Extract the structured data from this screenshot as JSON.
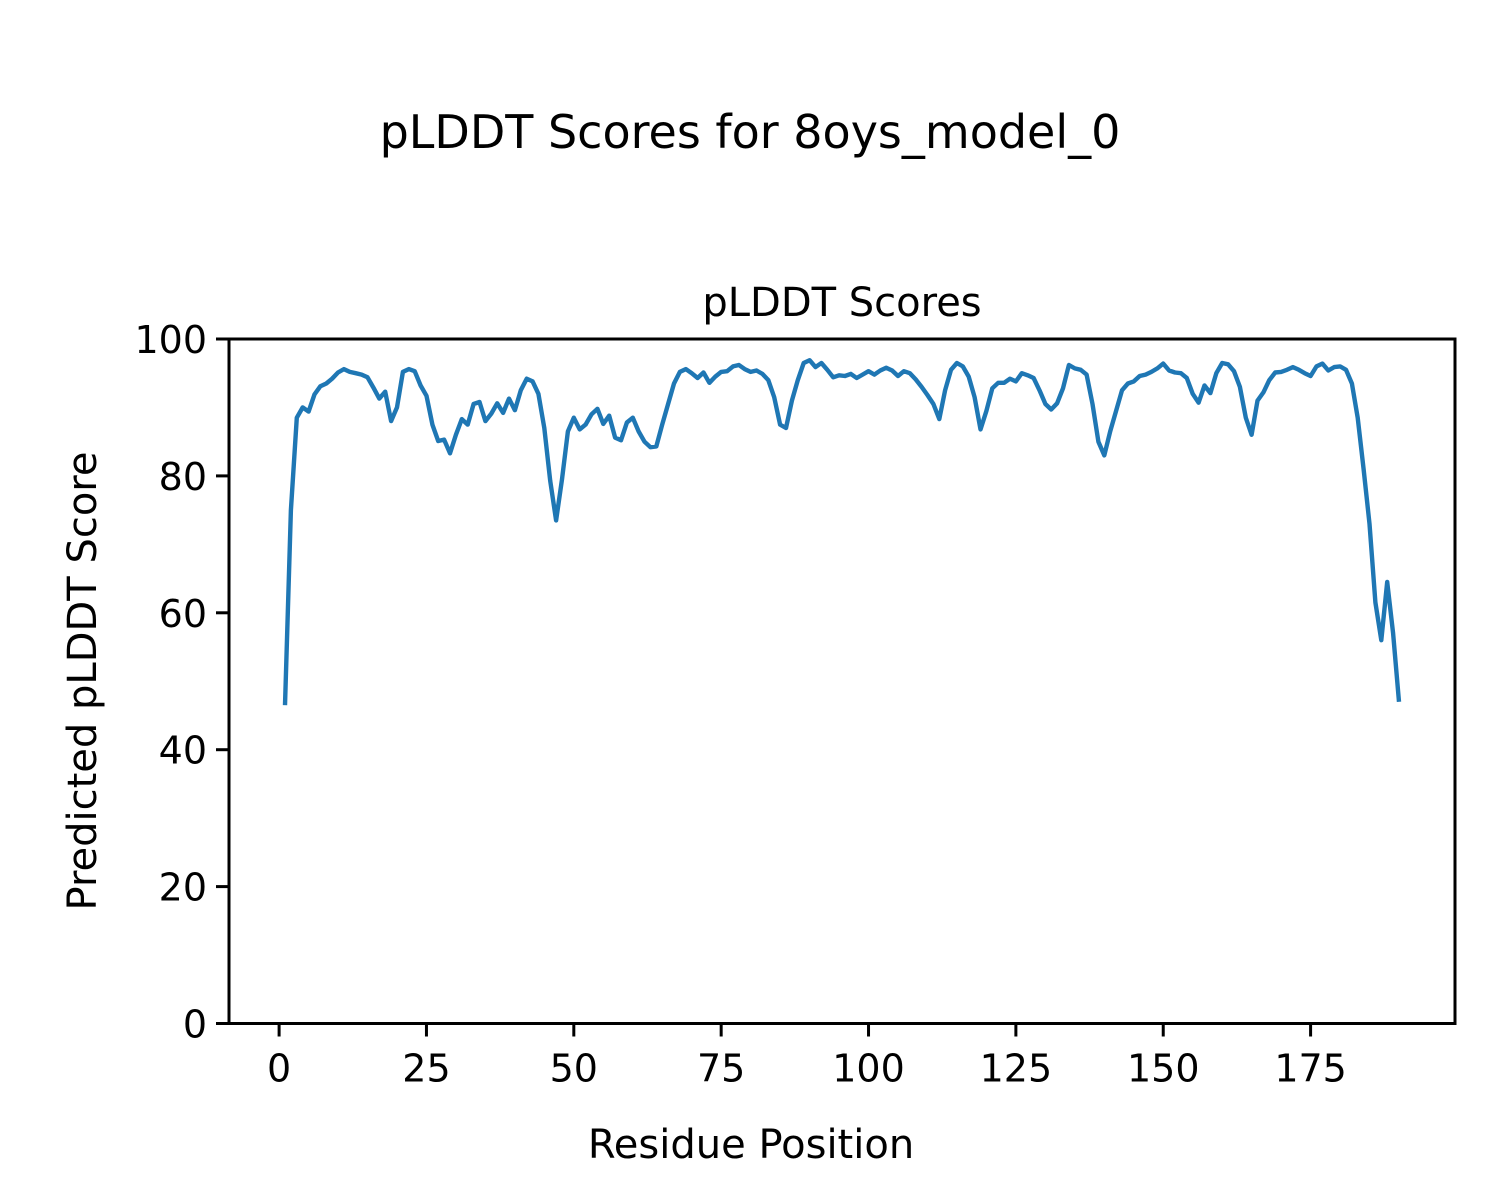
{
  "figure": {
    "suptitle": "pLDDT Scores for 8oys_model_0",
    "background_color": "#ffffff",
    "text_color": "#000000"
  },
  "chart_data": {
    "type": "line",
    "title": "pLDDT Scores",
    "xlabel": "Residue Position",
    "ylabel": "Predicted pLDDT Score",
    "legend": "none",
    "grid": false,
    "line_color": "#1f77b4",
    "line_width": 4.4,
    "spine_color": "#000000",
    "xlim": [
      -8.5,
      199.5
    ],
    "ylim": [
      0,
      100
    ],
    "x_ticks": [
      0,
      25,
      50,
      75,
      100,
      125,
      150,
      175
    ],
    "y_ticks": [
      0,
      20,
      40,
      60,
      80,
      100
    ],
    "series_name": "pLDDT",
    "x_start": 1,
    "x_step": 1,
    "values": [
      46.5,
      75.0,
      88.5,
      90.0,
      89.4,
      91.9,
      93.1,
      93.5,
      94.2,
      95.1,
      95.6,
      95.2,
      95.0,
      94.8,
      94.4,
      92.9,
      91.3,
      92.3,
      88.0,
      90.0,
      95.2,
      95.6,
      95.3,
      93.2,
      91.7,
      87.5,
      85.1,
      85.3,
      83.3,
      86.0,
      88.3,
      87.5,
      90.5,
      90.8,
      88.0,
      89.1,
      90.6,
      89.2,
      91.3,
      89.6,
      92.5,
      94.2,
      93.8,
      92.0,
      87.0,
      79.3,
      73.5,
      79.5,
      86.5,
      88.5,
      86.8,
      87.5,
      89.0,
      89.8,
      87.6,
      88.8,
      85.6,
      85.2,
      87.8,
      88.5,
      86.5,
      85.0,
      84.2,
      84.3,
      87.5,
      90.5,
      93.5,
      95.2,
      95.6,
      95.0,
      94.3,
      95.1,
      93.6,
      94.5,
      95.2,
      95.3,
      96.0,
      96.2,
      95.6,
      95.2,
      95.4,
      94.9,
      94.0,
      91.5,
      87.5,
      87.0,
      91.0,
      94.0,
      96.5,
      96.9,
      95.9,
      96.5,
      95.5,
      94.4,
      94.7,
      94.6,
      94.9,
      94.3,
      94.8,
      95.3,
      94.8,
      95.4,
      95.8,
      95.4,
      94.6,
      95.3,
      95.0,
      94.1,
      93.0,
      91.8,
      90.5,
      88.3,
      92.5,
      95.5,
      96.5,
      96.0,
      94.5,
      91.5,
      86.8,
      89.5,
      92.8,
      93.6,
      93.6,
      94.2,
      93.8,
      95.0,
      94.7,
      94.3,
      92.5,
      90.5,
      89.7,
      90.6,
      92.8,
      96.2,
      95.7,
      95.5,
      94.8,
      90.5,
      85.0,
      83.0,
      86.5,
      89.5,
      92.5,
      93.5,
      93.8,
      94.6,
      94.8,
      95.2,
      95.7,
      96.4,
      95.4,
      95.1,
      95.0,
      94.3,
      92.0,
      90.7,
      93.2,
      92.1,
      95.0,
      96.5,
      96.3,
      95.3,
      93.0,
      88.5,
      86.0,
      91.0,
      92.2,
      94.0,
      95.1,
      95.2,
      95.5,
      95.9,
      95.5,
      95.0,
      94.6,
      96.0,
      96.4,
      95.4,
      95.9,
      96.0,
      95.5,
      93.5,
      88.5,
      81.0,
      73.0,
      61.5,
      56.0,
      64.5,
      57.0,
      47.0
    ]
  }
}
